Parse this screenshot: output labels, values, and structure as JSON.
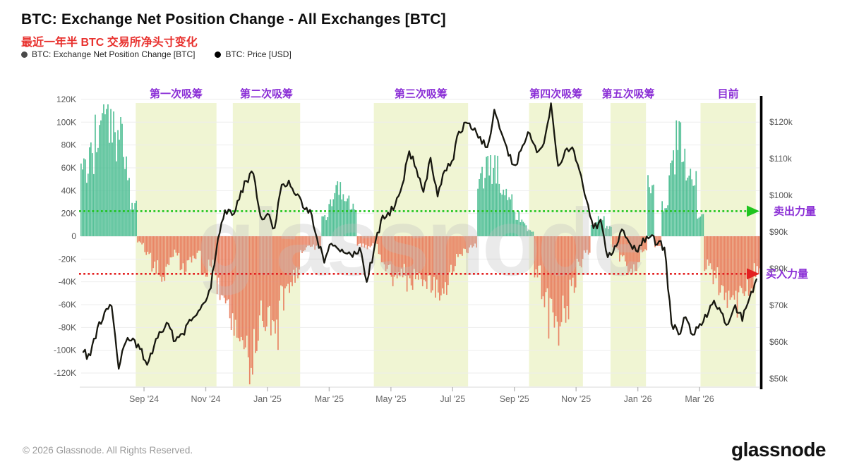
{
  "header": {
    "title": "BTC: Exchange Net Position Change - All Exchanges [BTC]",
    "subtitle": "最近一年半 BTC 交易所净头寸变化",
    "legend": [
      {
        "label": "BTC: Exchange Net Position Change [BTC]",
        "dot_color": "#4a4a4a"
      },
      {
        "label": "BTC: Price [USD]",
        "dot_color": "#000000"
      }
    ]
  },
  "watermark": "glassnode",
  "footer": {
    "copyright": "© 2026 Glassnode. All Rights Reserved.",
    "brand": "glassnode"
  },
  "chart_data": {
    "type": "bar",
    "title": "BTC: Exchange Net Position Change - All Exchanges [BTC]",
    "subtitle": "最近一年半 BTC 交易所净头寸变化",
    "x_range": "Jul 2024 - Apr 2026, weekly samples",
    "weeks": 96,
    "grid": true,
    "legend_position": "top-left",
    "x_ticks": [
      {
        "label": "Sep '24",
        "week": 8.57
      },
      {
        "label": "Nov '24",
        "week": 17.28
      },
      {
        "label": "Jan '25",
        "week": 25.99
      },
      {
        "label": "Mar '25",
        "week": 34.7
      },
      {
        "label": "May '25",
        "week": 43.41
      },
      {
        "label": "Jul '25",
        "week": 52.12
      },
      {
        "label": "Sep '25",
        "week": 60.83
      },
      {
        "label": "Nov '25",
        "week": 69.54
      },
      {
        "label": "Jan '26",
        "week": 78.25
      },
      {
        "label": "Mar '26",
        "week": 86.96
      }
    ],
    "left_axis": {
      "unit": "BTC",
      "min": -120000,
      "max": 120000,
      "tick_step": 20000,
      "ticks": [
        {
          "value": 120000,
          "label": "120K"
        },
        {
          "value": 100000,
          "label": "100K"
        },
        {
          "value": 80000,
          "label": "80K"
        },
        {
          "value": 60000,
          "label": "60K"
        },
        {
          "value": 40000,
          "label": "40K"
        },
        {
          "value": 20000,
          "label": "20K"
        },
        {
          "value": 0,
          "label": "0"
        },
        {
          "value": -20000,
          "label": "-20K"
        },
        {
          "value": -40000,
          "label": "-40K"
        },
        {
          "value": -60000,
          "label": "-60K"
        },
        {
          "value": -80000,
          "label": "-80K"
        },
        {
          "value": -100000,
          "label": "-100K"
        },
        {
          "value": -120000,
          "label": "-120K"
        }
      ]
    },
    "right_axis": {
      "unit": "USD",
      "min": 50000,
      "max": 120000,
      "ticks": [
        {
          "value": 120000,
          "label": "$120k"
        },
        {
          "value": 110000,
          "label": "$110k"
        },
        {
          "value": 100000,
          "label": "$100k"
        },
        {
          "value": 90000,
          "label": "$90k"
        },
        {
          "value": 80000,
          "label": "$80k"
        },
        {
          "value": 70000,
          "label": "$70k"
        },
        {
          "value": 60000,
          "label": "$60k"
        },
        {
          "value": 50000,
          "label": "$50k"
        }
      ]
    },
    "bands": [
      {
        "label": "第一次吸筹",
        "from_week": 7.4,
        "to_week": 18.8
      },
      {
        "label": "第二次吸筹",
        "from_week": 21.1,
        "to_week": 30.6
      },
      {
        "label": "第三次吸筹",
        "from_week": 41.0,
        "to_week": 54.3
      },
      {
        "label": "第四次吸筹",
        "from_week": 62.9,
        "to_week": 70.5
      },
      {
        "label": "第五次吸筹",
        "from_week": 74.4,
        "to_week": 79.4
      },
      {
        "label": "目前",
        "from_week": 87.1,
        "to_week": 94.9
      }
    ],
    "hlines": [
      {
        "label": "卖出力量",
        "value": 22000,
        "axis": "left",
        "color": "#1fc41f",
        "style": "dotted-arrow-right"
      },
      {
        "label": "买入力量",
        "value": -33000,
        "axis": "left",
        "color": "#e32020",
        "style": "dotted-arrow-right"
      }
    ],
    "series": [
      {
        "name": "BTC: Exchange Net Position Change [BTC]",
        "type": "bar",
        "axis": "left",
        "unit": "BTC",
        "values": [
          55000,
          70000,
          95000,
          110000,
          100000,
          85000,
          62000,
          25000,
          -6000,
          -18000,
          -28000,
          -35000,
          -22000,
          -15000,
          -28000,
          -22000,
          -16000,
          -30000,
          -25000,
          -45000,
          -60000,
          -70000,
          -85000,
          -115000,
          -100000,
          -75000,
          -80000,
          -85000,
          -55000,
          -45000,
          -35000,
          -12000,
          -8000,
          -10000,
          15000,
          35000,
          43000,
          40000,
          25000,
          -8000,
          -10000,
          -8000,
          -20000,
          -30000,
          -38000,
          -30000,
          -42000,
          -35000,
          -45000,
          -40000,
          -50000,
          -45000,
          -30000,
          -20000,
          -12000,
          -8000,
          55000,
          62000,
          58000,
          38000,
          35000,
          18000,
          12000,
          5000,
          -30000,
          -50000,
          -72000,
          -82000,
          -65000,
          -40000,
          -25000,
          -15000,
          10000,
          15000,
          8000,
          -10000,
          -18000,
          -32000,
          -28000,
          -12000,
          45000,
          -8000,
          25000,
          70000,
          82000,
          62000,
          48000,
          20000,
          -25000,
          -35000,
          -45000,
          -52000,
          -58000,
          -55000,
          -45000,
          -30000
        ]
      },
      {
        "name": "BTC: Price [USD]",
        "type": "line",
        "axis": "right",
        "unit": "USD",
        "values": [
          57000,
          56000,
          64000,
          68000,
          70000,
          53000,
          60000,
          61000,
          58000,
          54000,
          59000,
          63000,
          65000,
          60000,
          62000,
          66000,
          67000,
          71000,
          75000,
          88000,
          96000,
          95000,
          99000,
          104000,
          106000,
          94000,
          95000,
          91000,
          103000,
          104000,
          100000,
          97000,
          96000,
          88000,
          82000,
          87000,
          85000,
          84000,
          83000,
          86000,
          76000,
          85000,
          93000,
          95000,
          97000,
          103000,
          112000,
          107000,
          101000,
          110000,
          100000,
          107000,
          109000,
          117000,
          120000,
          118000,
          116000,
          113000,
          123000,
          117000,
          111000,
          108000,
          114000,
          117000,
          112000,
          114000,
          125000,
          108000,
          112000,
          113000,
          107000,
          99000,
          91000,
          93000,
          83000,
          86000,
          91000,
          87000,
          85000,
          88000,
          89000,
          87000,
          86000,
          65000,
          62000,
          67000,
          62000,
          65000,
          67000,
          71000,
          68000,
          65000,
          70000,
          66000,
          72000,
          77000
        ]
      }
    ],
    "colors": {
      "positive": "#4dbe92",
      "negative": "#e87e5f",
      "price_line": "#17170f",
      "band": "#f0f5d3",
      "annotation": "#8b2fd6",
      "sell_line": "#1fc41f",
      "buy_line": "#e32020"
    }
  }
}
